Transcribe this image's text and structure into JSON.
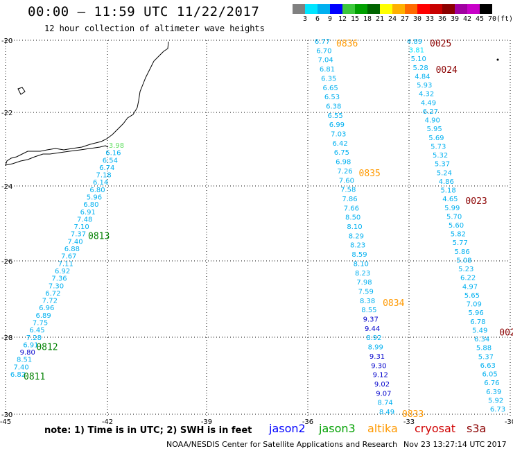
{
  "title": "00:00 – 11:59 UTC 11/22/2017",
  "subtitle": "12 hour collection of altimeter wave heights",
  "color_scale": {
    "labels": [
      "3",
      "6",
      "9",
      "12",
      "15",
      "18",
      "21",
      "24",
      "27",
      "30",
      "33",
      "36",
      "39",
      "42",
      "45",
      "70"
    ],
    "unit": "(ft)",
    "colors": [
      "#808080",
      "#00e5ff",
      "#00b0f0",
      "#0000ff",
      "#3cc83c",
      "#00a000",
      "#006400",
      "#ffff00",
      "#ffb000",
      "#ff6a00",
      "#ff0000",
      "#c80000",
      "#8b0000",
      "#a000a0",
      "#c800c8",
      "#000000"
    ]
  },
  "axes": {
    "lon_labels": [
      "-45",
      "-42",
      "-39",
      "-36",
      "-33",
      "-30"
    ],
    "lat_labels": [
      "-20",
      "-22",
      "-24",
      "-26",
      "-28",
      "-30"
    ]
  },
  "satellites": {
    "jason2": {
      "label": "jason2",
      "color": "#0000ff"
    },
    "jason3": {
      "label": "jason3",
      "color": "#00a000"
    },
    "altika": {
      "label": "altika",
      "color": "#ff9900"
    },
    "cryosat": {
      "label": "cryosat",
      "color": "#d00000"
    },
    "s3a": {
      "label": "s3a",
      "color": "#8b0000"
    }
  },
  "tracks": [
    {
      "id": "track-west",
      "values": [
        {
          "v": "3.98",
          "c": "#66e066"
        },
        {
          "v": "6.16",
          "c": "#00b0f0"
        },
        {
          "v": "6.54",
          "c": "#00b0f0"
        },
        {
          "v": "6.74",
          "c": "#00b0f0"
        },
        {
          "v": "7.18",
          "c": "#00b0f0"
        },
        {
          "v": "6.14",
          "c": "#00b0f0"
        },
        {
          "v": "6.80",
          "c": "#00b0f0"
        },
        {
          "v": "5.96",
          "c": "#00b0f0"
        },
        {
          "v": "6.80",
          "c": "#00b0f0"
        },
        {
          "v": "6.91",
          "c": "#00b0f0"
        },
        {
          "v": "7.48",
          "c": "#00b0f0"
        },
        {
          "v": "7.10",
          "c": "#00b0f0"
        },
        {
          "v": "7.37",
          "c": "#00b0f0"
        },
        {
          "v": "7.40",
          "c": "#00b0f0"
        },
        {
          "v": "6.88",
          "c": "#00b0f0"
        },
        {
          "v": "7.67",
          "c": "#00b0f0"
        },
        {
          "v": "7.11",
          "c": "#00b0f0"
        },
        {
          "v": "6.92",
          "c": "#00b0f0"
        },
        {
          "v": "7.36",
          "c": "#00b0f0"
        },
        {
          "v": "7.30",
          "c": "#00b0f0"
        },
        {
          "v": "6.72",
          "c": "#00b0f0"
        },
        {
          "v": "7.72",
          "c": "#00b0f0"
        },
        {
          "v": "6.96",
          "c": "#00b0f0"
        },
        {
          "v": "6.89",
          "c": "#00b0f0"
        },
        {
          "v": "7.75",
          "c": "#00b0f0"
        },
        {
          "v": "6.45",
          "c": "#00b0f0"
        },
        {
          "v": "7.28",
          "c": "#00b0f0"
        },
        {
          "v": "6.91",
          "c": "#00b0f0"
        },
        {
          "v": "9.80",
          "c": "#0000cc"
        },
        {
          "v": "8.51",
          "c": "#00b0f0"
        },
        {
          "v": "7.40",
          "c": "#00b0f0"
        },
        {
          "v": "6.82",
          "c": "#00b0f0"
        }
      ],
      "times": [
        {
          "t": "0813",
          "c": "#008000",
          "after": 12
        },
        {
          "t": "0812",
          "c": "#008000",
          "after": 27
        },
        {
          "t": "0811",
          "c": "#008000",
          "after": 31
        }
      ]
    },
    {
      "id": "track-middle",
      "values": [
        {
          "v": "6.77",
          "c": "#00b0f0"
        },
        {
          "v": "6.70",
          "c": "#00b0f0"
        },
        {
          "v": "7.04",
          "c": "#00b0f0"
        },
        {
          "v": "6.81",
          "c": "#00b0f0"
        },
        {
          "v": "6.35",
          "c": "#00b0f0"
        },
        {
          "v": "6.65",
          "c": "#00b0f0"
        },
        {
          "v": "6.53",
          "c": "#00b0f0"
        },
        {
          "v": "6.38",
          "c": "#00b0f0"
        },
        {
          "v": "6.55",
          "c": "#00b0f0"
        },
        {
          "v": "6.99",
          "c": "#00b0f0"
        },
        {
          "v": "7.03",
          "c": "#00b0f0"
        },
        {
          "v": "6.42",
          "c": "#00b0f0"
        },
        {
          "v": "6.75",
          "c": "#00b0f0"
        },
        {
          "v": "6.98",
          "c": "#00b0f0"
        },
        {
          "v": "7.26",
          "c": "#00b0f0"
        },
        {
          "v": "7.60",
          "c": "#00b0f0"
        },
        {
          "v": "7.58",
          "c": "#00b0f0"
        },
        {
          "v": "7.86",
          "c": "#00b0f0"
        },
        {
          "v": "7.66",
          "c": "#00b0f0"
        },
        {
          "v": "8.50",
          "c": "#00b0f0"
        },
        {
          "v": "8.10",
          "c": "#00b0f0"
        },
        {
          "v": "8.29",
          "c": "#00b0f0"
        },
        {
          "v": "8.23",
          "c": "#00b0f0"
        },
        {
          "v": "8.59",
          "c": "#00b0f0"
        },
        {
          "v": "8.10",
          "c": "#00b0f0"
        },
        {
          "v": "8.23",
          "c": "#00b0f0"
        },
        {
          "v": "7.98",
          "c": "#00b0f0"
        },
        {
          "v": "7.59",
          "c": "#00b0f0"
        },
        {
          "v": "8.38",
          "c": "#00b0f0"
        },
        {
          "v": "8.55",
          "c": "#00b0f0"
        },
        {
          "v": "9.37",
          "c": "#0000cc"
        },
        {
          "v": "9.44",
          "c": "#0000cc"
        },
        {
          "v": "8.92",
          "c": "#00b0f0"
        },
        {
          "v": "8.99",
          "c": "#00b0f0"
        },
        {
          "v": "9.31",
          "c": "#0000cc"
        },
        {
          "v": "9.30",
          "c": "#0000cc"
        },
        {
          "v": "9.12",
          "c": "#0000cc"
        },
        {
          "v": "9.02",
          "c": "#0000cc"
        },
        {
          "v": "9.07",
          "c": "#0000cc"
        },
        {
          "v": "8.74",
          "c": "#00b0f0"
        },
        {
          "v": "8.49",
          "c": "#00b0f0"
        }
      ],
      "times": [
        {
          "t": "0836",
          "c": "#ff9900",
          "after": 0
        },
        {
          "t": "0835",
          "c": "#ff9900",
          "after": 14
        },
        {
          "t": "0834",
          "c": "#ff9900",
          "after": 28
        },
        {
          "t": "0833",
          "c": "#ff9900",
          "after": 40
        }
      ]
    },
    {
      "id": "track-east",
      "values": [
        {
          "v": "4.89",
          "c": "#00b0f0"
        },
        {
          "v": "3.81",
          "c": "#00e5ff"
        },
        {
          "v": "5.10",
          "c": "#00b0f0"
        },
        {
          "v": "5.28",
          "c": "#00b0f0"
        },
        {
          "v": "4.84",
          "c": "#00b0f0"
        },
        {
          "v": "5.93",
          "c": "#00b0f0"
        },
        {
          "v": "4.32",
          "c": "#00b0f0"
        },
        {
          "v": "4.49",
          "c": "#00b0f0"
        },
        {
          "v": "6.27",
          "c": "#00b0f0"
        },
        {
          "v": "4.90",
          "c": "#00b0f0"
        },
        {
          "v": "5.95",
          "c": "#00b0f0"
        },
        {
          "v": "5.69",
          "c": "#00b0f0"
        },
        {
          "v": "5.73",
          "c": "#00b0f0"
        },
        {
          "v": "5.32",
          "c": "#00b0f0"
        },
        {
          "v": "5.37",
          "c": "#00b0f0"
        },
        {
          "v": "5.24",
          "c": "#00b0f0"
        },
        {
          "v": "4.86",
          "c": "#00b0f0"
        },
        {
          "v": "5.18",
          "c": "#00b0f0"
        },
        {
          "v": "4.65",
          "c": "#00b0f0"
        },
        {
          "v": "5.99",
          "c": "#00b0f0"
        },
        {
          "v": "5.70",
          "c": "#00b0f0"
        },
        {
          "v": "5.60",
          "c": "#00b0f0"
        },
        {
          "v": "5.82",
          "c": "#00b0f0"
        },
        {
          "v": "5.77",
          "c": "#00b0f0"
        },
        {
          "v": "5.86",
          "c": "#00b0f0"
        },
        {
          "v": "5.08",
          "c": "#00b0f0"
        },
        {
          "v": "5.23",
          "c": "#00b0f0"
        },
        {
          "v": "6.22",
          "c": "#00b0f0"
        },
        {
          "v": "4.97",
          "c": "#00b0f0"
        },
        {
          "v": "5.65",
          "c": "#00b0f0"
        },
        {
          "v": "7.09",
          "c": "#00b0f0"
        },
        {
          "v": "5.96",
          "c": "#00b0f0"
        },
        {
          "v": "6.78",
          "c": "#00b0f0"
        },
        {
          "v": "5.49",
          "c": "#00b0f0"
        },
        {
          "v": "6.34",
          "c": "#00b0f0"
        },
        {
          "v": "5.88",
          "c": "#00b0f0"
        },
        {
          "v": "5.37",
          "c": "#00b0f0"
        },
        {
          "v": "6.63",
          "c": "#00b0f0"
        },
        {
          "v": "6.05",
          "c": "#00b0f0"
        },
        {
          "v": "6.76",
          "c": "#00b0f0"
        },
        {
          "v": "6.39",
          "c": "#00b0f0"
        },
        {
          "v": "5.92",
          "c": "#00b0f0"
        },
        {
          "v": "6.73",
          "c": "#00b0f0"
        }
      ],
      "times": [
        {
          "t": "0025",
          "c": "#8b0000",
          "after": 0
        },
        {
          "t": "0024",
          "c": "#8b0000",
          "after": 3
        },
        {
          "t": "0023",
          "c": "#8b0000",
          "after": 18
        },
        {
          "t": "002",
          "c": "#8b0000",
          "after": 33
        }
      ]
    }
  ],
  "note": "note: 1) Time is in UTC; 2) SWH is in feet",
  "credit": "NOAA/NESDIS Center for Satellite Applications and Research",
  "timestamp": "Nov 23 13:27:14 UTC 2017"
}
